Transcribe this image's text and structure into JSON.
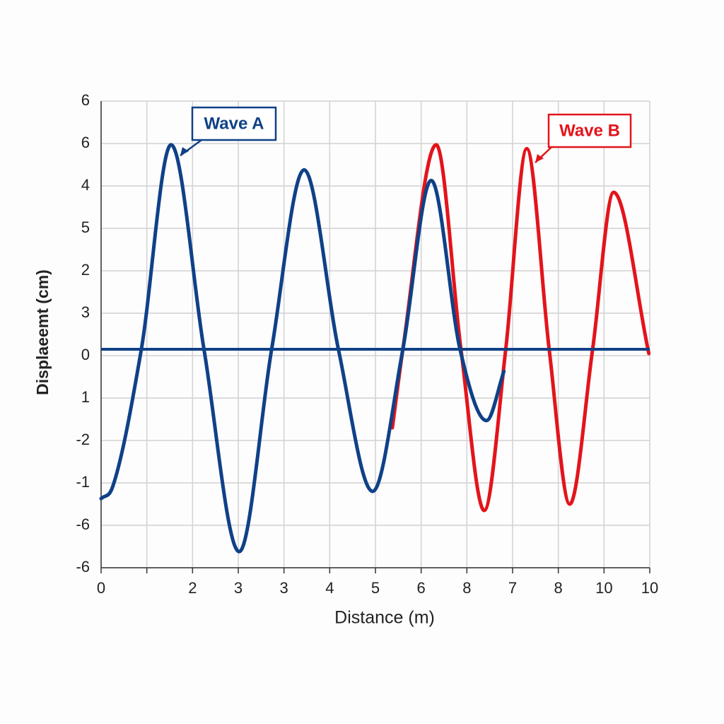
{
  "chart_data": {
    "type": "line",
    "x_label": "Distance (m)",
    "y_label": "Displaeemt (cm)",
    "xlim": [
      0,
      12
    ],
    "ylim": [
      -5,
      6
    ],
    "xticks": [
      0,
      {
        "value": 1,
        "label": null
      },
      2,
      3,
      {
        "value": 4,
        "label": "3"
      },
      {
        "value": 5,
        "label": "4"
      },
      {
        "value": 6,
        "label": "5"
      },
      {
        "value": 7,
        "label": "6"
      },
      8,
      {
        "value": 9,
        "label": "7"
      },
      {
        "value": 10,
        "label": "8"
      },
      {
        "value": 11,
        "label": "10"
      },
      {
        "value": 12,
        "label": "10"
      }
    ],
    "yticks": [
      {
        "value": -5,
        "label": "-6"
      },
      {
        "value": -4,
        "label": "-6"
      },
      {
        "value": -3,
        "label": "-1"
      },
      -2,
      {
        "value": -1,
        "label": "1"
      },
      0,
      {
        "value": 1,
        "label": "3"
      },
      2,
      {
        "value": 3,
        "label": "5"
      },
      4,
      {
        "value": 5,
        "label": "6"
      },
      6
    ],
    "grid": true,
    "reference_line": {
      "value": 0.15,
      "color": "#0f4187"
    },
    "series": [
      {
        "name": "Wave A",
        "color": "#0f4187",
        "x": [
          0,
          0.25,
          0.88,
          1.53,
          2.25,
          3.02,
          3.73,
          4.44,
          5.19,
          5.94,
          6.6,
          7.22,
          7.85,
          8.43,
          8.81
        ],
        "values": [
          -3.37,
          -3.1,
          0.15,
          4.97,
          0.15,
          -4.62,
          0.15,
          4.38,
          0.15,
          -3.2,
          0.15,
          4.13,
          0.15,
          -1.53,
          -0.37
        ]
      },
      {
        "name": "Wave B",
        "color": "#e3141b",
        "x": [
          6.37,
          6.6,
          7.33,
          7.87,
          8.38,
          8.85,
          9.31,
          9.8,
          10.25,
          10.75,
          11.21,
          11.98
        ],
        "values": [
          -1.7,
          0.15,
          4.97,
          0.15,
          -3.65,
          0.15,
          4.88,
          0.15,
          -3.5,
          0.15,
          3.85,
          0.05
        ]
      }
    ]
  }
}
